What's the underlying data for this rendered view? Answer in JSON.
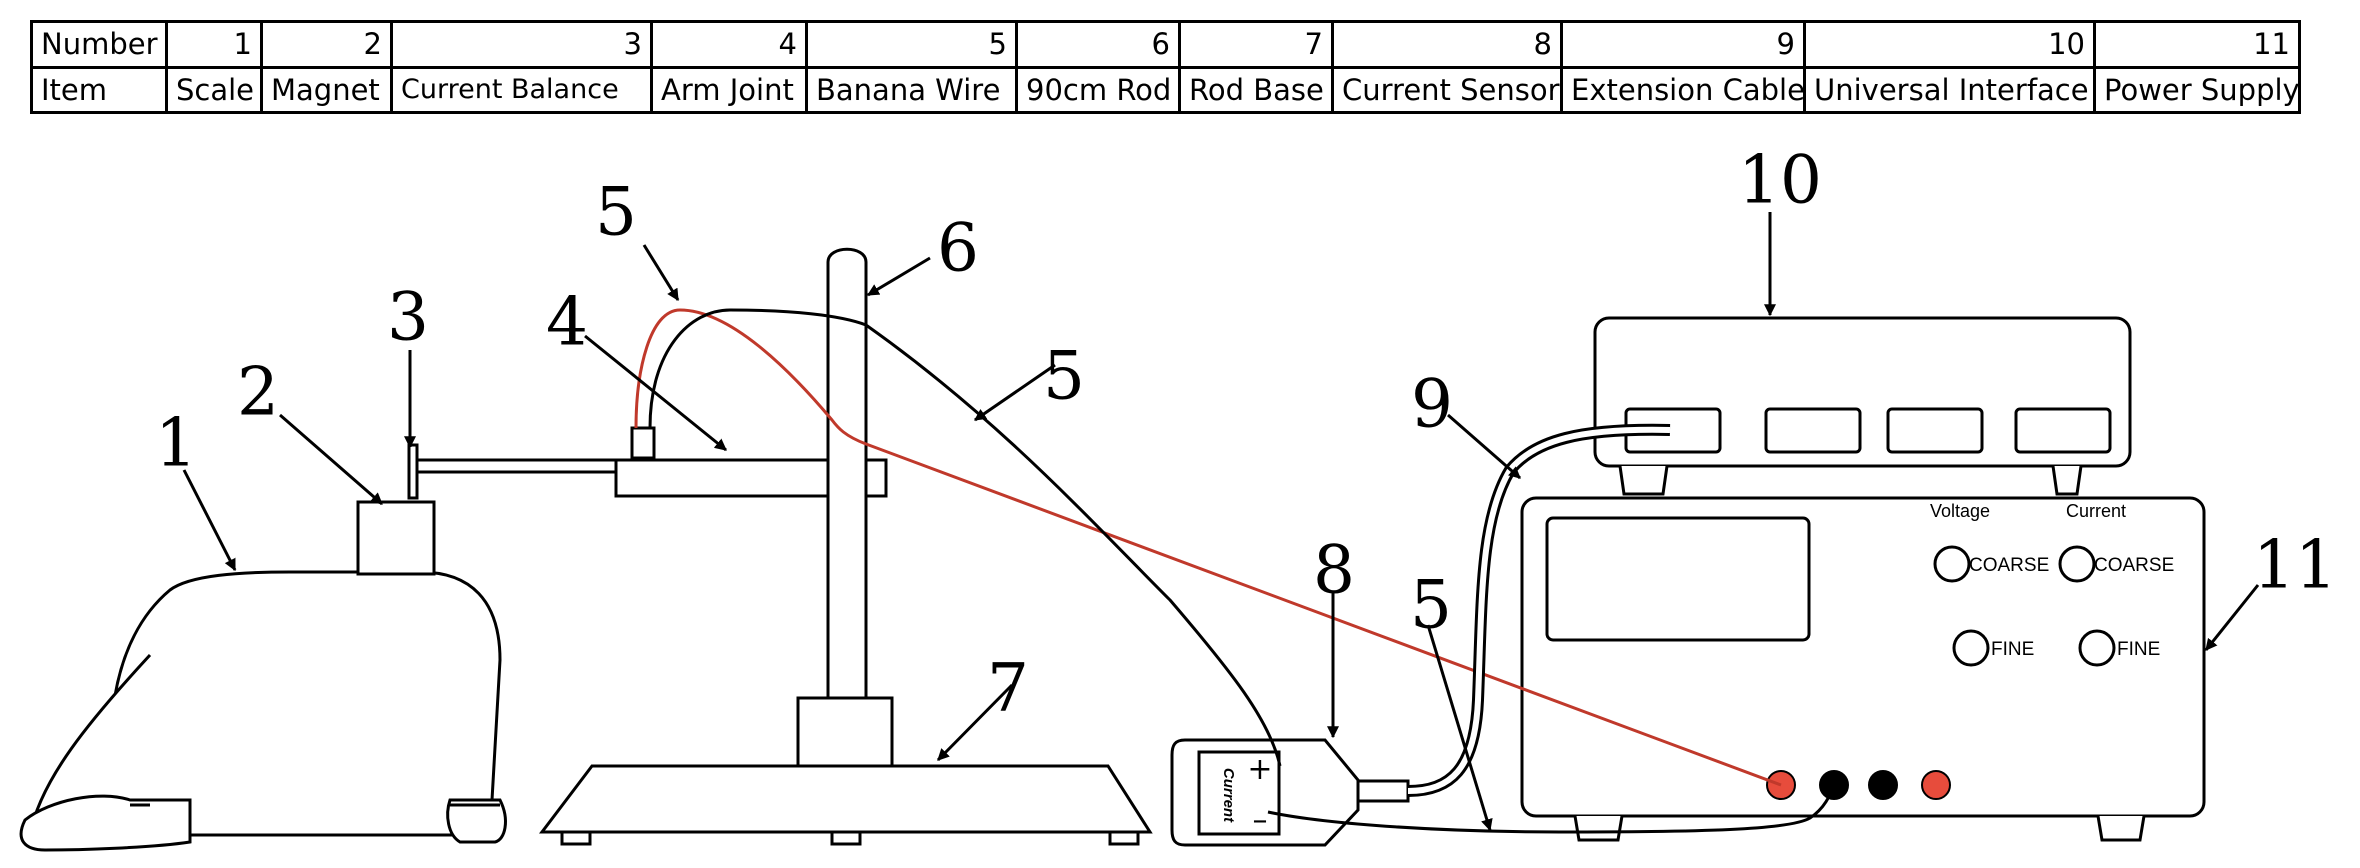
{
  "table": {
    "number_header": "Number",
    "item_header": "Item",
    "numbers": [
      "1",
      "2",
      "3",
      "4",
      "5",
      "6",
      "7",
      "8",
      "9",
      "10",
      "11"
    ],
    "items": [
      "Scale",
      "Magnet",
      "Current Balance",
      "Arm Joint",
      "Banana Wire",
      "90cm Rod",
      "Rod Base",
      "Current Sensor",
      "Extension Cable",
      "Universal Interface",
      "Power Supply"
    ]
  },
  "diagram": {
    "callouts": {
      "scale": "1",
      "magnet": "2",
      "current_balance": "3",
      "arm_joint": "4",
      "wire_top": "5",
      "wire_mid": "5",
      "wire_lower": "5",
      "rod": "6",
      "rod_base": "7",
      "current_sensor": "8",
      "extension_cable": "9",
      "universal_interface": "10",
      "power_supply": "11"
    },
    "power_supply_labels": {
      "voltage": "Voltage",
      "current": "Current",
      "coarse_left": "COARSE",
      "coarse_right": "COARSE",
      "fine_left": "FINE",
      "fine_right": "FINE"
    },
    "sensor_labels": {
      "name": "Current",
      "plus": "+",
      "minus": "–"
    },
    "colors": {
      "wire_red": "#c0392b",
      "terminal_red": "#e74c3c",
      "ink": "#000000"
    }
  }
}
